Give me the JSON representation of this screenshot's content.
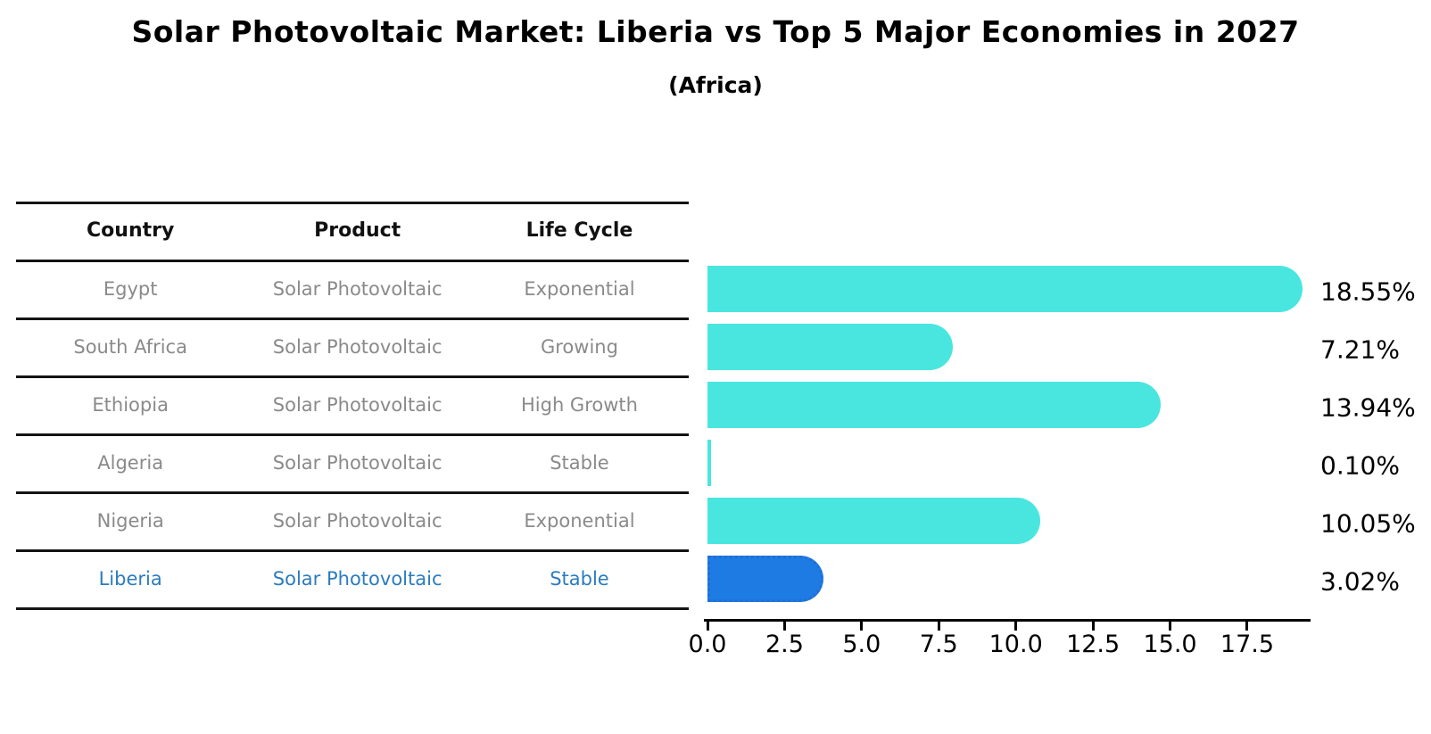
{
  "title": "Solar Photovoltaic Market: Liberia vs Top 5 Major Economies in 2027",
  "subtitle": "(Africa)",
  "table": {
    "headers": [
      "Country",
      "Product",
      "Life Cycle"
    ],
    "rows": [
      {
        "country": "Egypt",
        "product": "Solar Photovoltaic",
        "life_cycle": "Exponential",
        "highlight": false
      },
      {
        "country": "South Africa",
        "product": "Solar Photovoltaic",
        "life_cycle": "Growing",
        "highlight": false
      },
      {
        "country": "Ethiopia",
        "product": "Solar Photovoltaic",
        "life_cycle": "High Growth",
        "highlight": false
      },
      {
        "country": "Algeria",
        "product": "Solar Photovoltaic",
        "life_cycle": "Stable",
        "highlight": false
      },
      {
        "country": "Nigeria",
        "product": "Solar Photovoltaic",
        "life_cycle": "Exponential",
        "highlight": false
      },
      {
        "country": "Liberia",
        "product": "Solar Photovoltaic",
        "life_cycle": "Stable",
        "highlight": true
      }
    ]
  },
  "chart_data": {
    "type": "bar",
    "orientation": "horizontal",
    "title": "Solar Photovoltaic Market: Liberia vs Top 5 Major Economies in 2027",
    "subtitle": "(Africa)",
    "categories": [
      "Egypt",
      "South Africa",
      "Ethiopia",
      "Algeria",
      "Nigeria",
      "Liberia"
    ],
    "values": [
      18.55,
      7.21,
      13.94,
      0.1,
      10.05,
      3.02
    ],
    "value_labels": [
      "18.55%",
      "7.21%",
      "13.94%",
      "0.10%",
      "10.05%",
      "3.02%"
    ],
    "xlabel": "",
    "ylabel": "",
    "xlim": [
      0,
      19.6
    ],
    "x_ticks": [
      0.0,
      2.5,
      5.0,
      7.5,
      10.0,
      12.5,
      15.0,
      17.5
    ],
    "x_tick_labels": [
      "0.0",
      "2.5",
      "5.0",
      "7.5",
      "10.0",
      "12.5",
      "15.0",
      "17.5"
    ],
    "grid": false,
    "legend": null,
    "bar_color": "#49e6e0",
    "highlight_color": "#1f7be4",
    "highlight_border_color": "#1e6fd6",
    "highlight_index": 5
  },
  "colors": {
    "text_black": "#000000",
    "table_text_gray": "#8a8a8a",
    "highlight_text_blue": "#2b7cbf",
    "line_black": "#141414"
  }
}
